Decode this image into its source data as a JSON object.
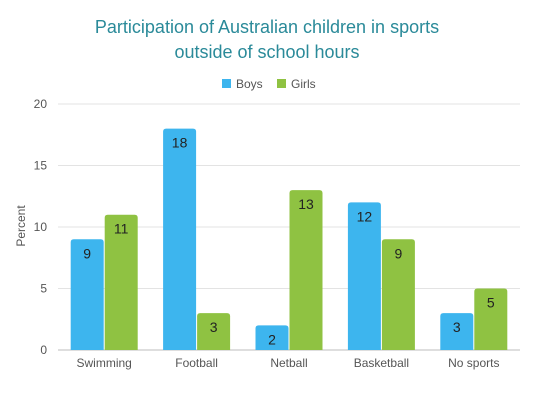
{
  "chart_data": {
    "type": "bar",
    "title": [
      "Participation of Australian children in sports",
      "outside of school hours"
    ],
    "ylabel": "Percent",
    "xlabel": "",
    "ylim": [
      0,
      20
    ],
    "yticks": [
      0,
      5,
      10,
      15,
      20
    ],
    "grid": true,
    "legend_position": "top",
    "categories": [
      "Swimming",
      "Football",
      "Netball",
      "Basketball",
      "No sports"
    ],
    "series": [
      {
        "name": "Boys",
        "color": "#3db5ee",
        "values": [
          9,
          18,
          2,
          12,
          3
        ]
      },
      {
        "name": "Girls",
        "color": "#8fc242",
        "values": [
          11,
          3,
          13,
          9,
          5
        ]
      }
    ]
  }
}
